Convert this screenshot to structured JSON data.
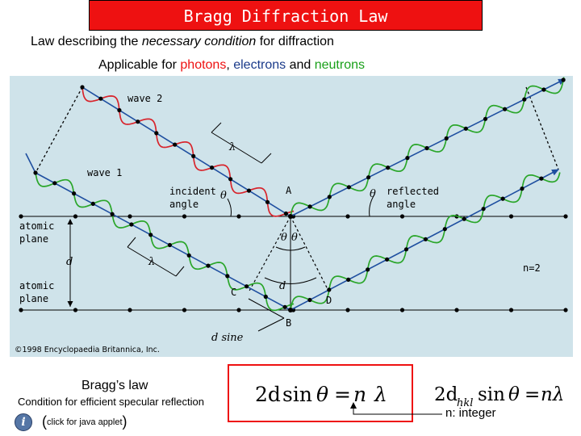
{
  "header": {
    "title": "Bragg Diffraction Law",
    "subtitle_prefix": "Law describing the ",
    "subtitle_italic": "necessary condition",
    "subtitle_suffix": " for diffraction"
  },
  "applicable": {
    "prefix": "Applicable for ",
    "photons": "photons",
    "comma": ", ",
    "electrons": "electrons",
    "and": " and ",
    "neutrons": "neutrons"
  },
  "diagram": {
    "wave2": "wave 2",
    "wave1": "wave 1",
    "lambda": "λ",
    "incident_line1": "incident",
    "incident_line2": "angle",
    "theta": "θ",
    "point_a": "A",
    "point_b": "B",
    "point_c": "C",
    "point_d": "D",
    "reflected_line1": "reflected",
    "reflected_line2": "angle",
    "atomic_plane_line1": "atomic",
    "atomic_plane_line2": "plane",
    "d_label": "d",
    "n_label": "n=2",
    "d_sine": "d sine",
    "copyright": "©1998 Encyclopaedia Britannica, Inc.",
    "colors": {
      "wave_blue": "#1f4fa0",
      "wave_red": "#d8242c",
      "wave_green": "#2aa62a",
      "background": "#cfe3ea"
    }
  },
  "bottom": {
    "braggs_law": "Bragg’s law",
    "condition": "Condition for efficient specular reflection",
    "info_icon": "i",
    "java_open": "(",
    "java_text": "click for java applet",
    "java_close": ")",
    "formula": {
      "lhs_2d": "2d",
      "sin": "sin",
      "theta": "θ",
      "eq": "=",
      "n": "n",
      "lambda": "λ"
    },
    "formula2": {
      "lhs_2d": "2d",
      "sub_hkl": "hkl",
      "sin": "sin",
      "theta": "θ",
      "eq": "=",
      "rhs": "nλ"
    },
    "n_integer": "n: integer"
  }
}
